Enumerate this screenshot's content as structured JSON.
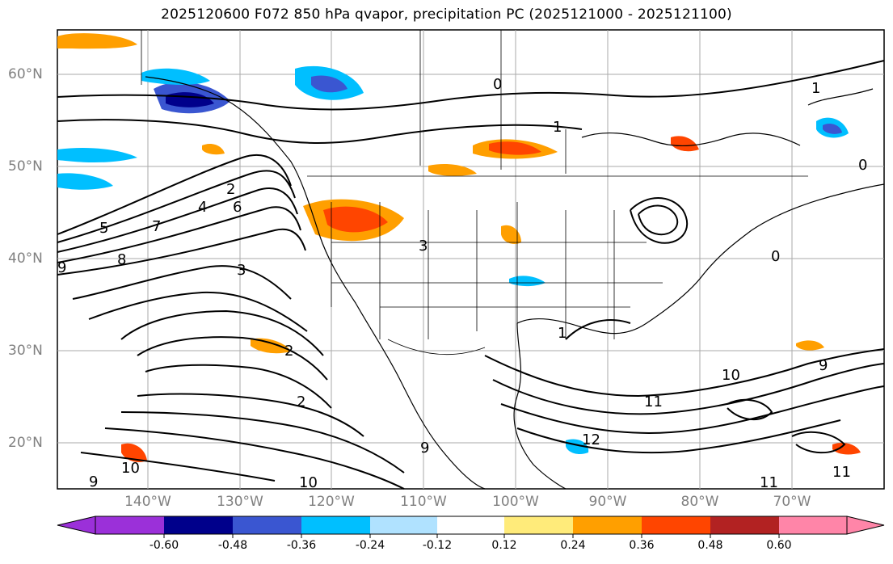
{
  "title": "2025120600 F072 850 hPa qvapor, precipitation PC (2025121000 - 2025121100)",
  "map": {
    "lat_labels": [
      "60°N",
      "50°N",
      "40°N",
      "30°N",
      "20°N"
    ],
    "lon_labels": [
      "140°W",
      "130°W",
      "120°W",
      "110°W",
      "100°W",
      "90°W",
      "80°W",
      "70°W"
    ],
    "contour_labels": [
      "2",
      "4",
      "5",
      "7",
      "8",
      "9",
      "10",
      "11",
      "12",
      "0",
      "3",
      "1",
      "6"
    ]
  },
  "colorbar": {
    "ticks": [
      "-0.60",
      "-0.48",
      "-0.36",
      "-0.24",
      "-0.12",
      "0.12",
      "0.24",
      "0.36",
      "0.48",
      "0.60"
    ],
    "colors": [
      "#9b30d9",
      "#00008b",
      "#3a56d1",
      "#00bfff",
      "#b0e2ff",
      "#ffffff",
      "#ffeb7a",
      "#ff9f00",
      "#ff4500",
      "#b22222",
      "#ff85a8"
    ]
  }
}
